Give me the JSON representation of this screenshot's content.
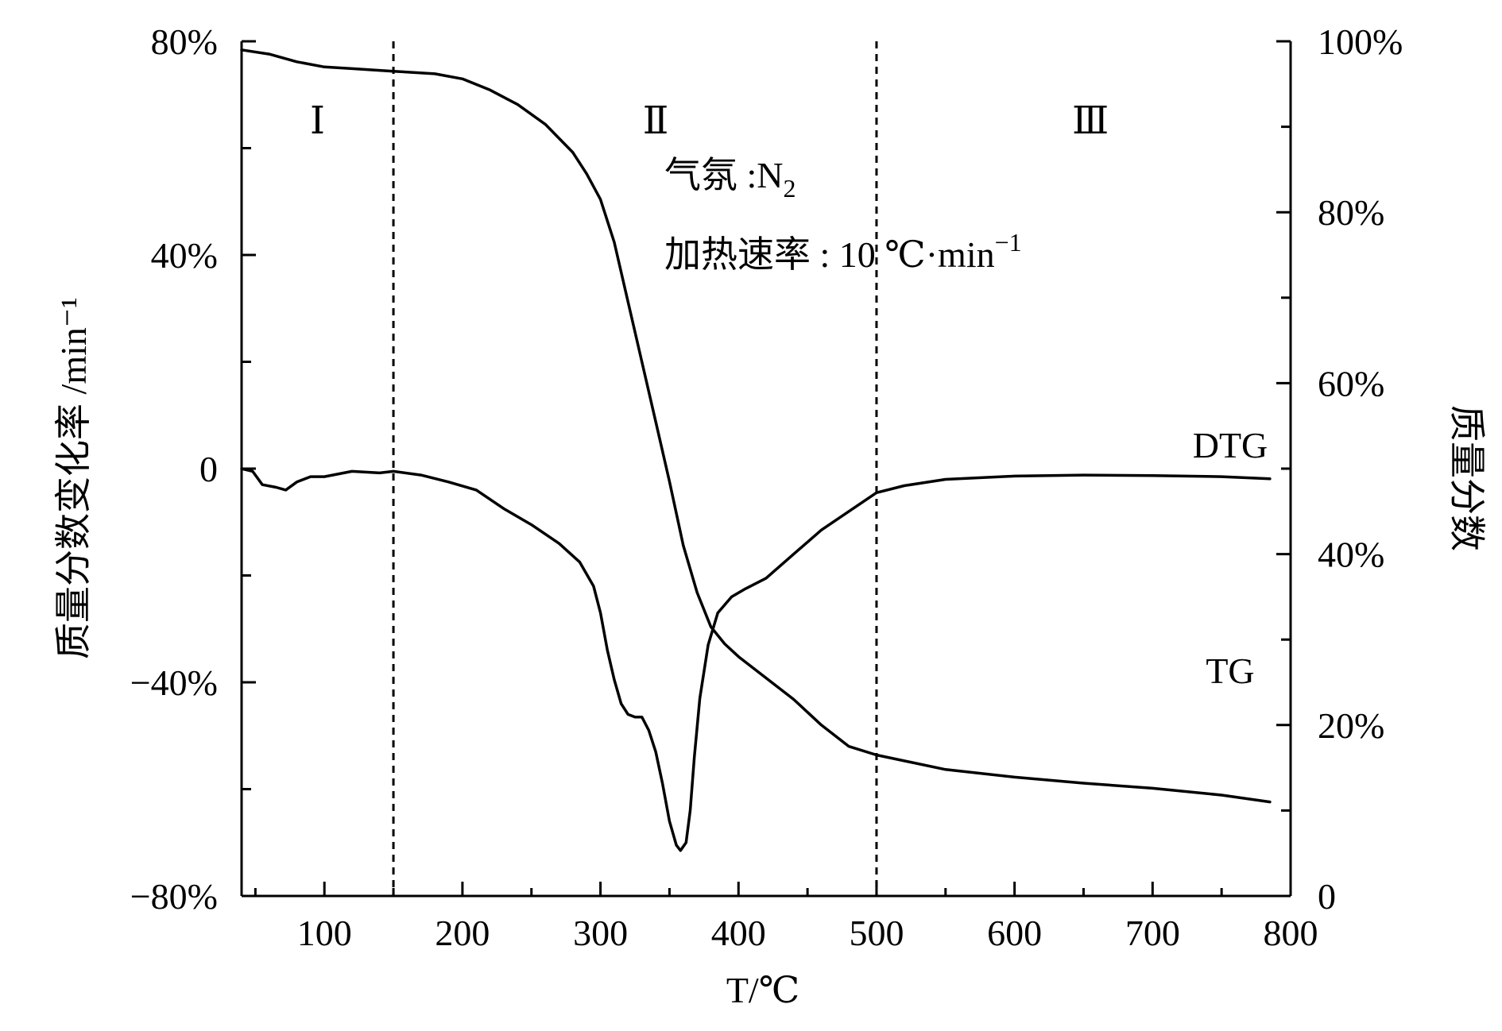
{
  "chart_data": {
    "type": "line",
    "xlabel": "T/℃",
    "ylabel_left": "质量分数变化率 /min⁻¹",
    "ylabel_right": "质量分数",
    "xlim": [
      40,
      800
    ],
    "ylim_left": [
      -80,
      80
    ],
    "ylim_right": [
      0,
      100
    ],
    "x_ticks": [
      100,
      200,
      300,
      400,
      500,
      600,
      700,
      800
    ],
    "y_ticks_left": [
      {
        "value": 80,
        "label": "80%"
      },
      {
        "value": 40,
        "label": "40%"
      },
      {
        "value": 0,
        "label": "0"
      },
      {
        "value": -40,
        "label": "−40%"
      },
      {
        "value": -80,
        "label": "−80%"
      }
    ],
    "y_ticks_right": [
      {
        "value": 100,
        "label": "100%"
      },
      {
        "value": 80,
        "label": "80%"
      },
      {
        "value": 60,
        "label": "60%"
      },
      {
        "value": 40,
        "label": "40%"
      },
      {
        "value": 20,
        "label": "20%"
      },
      {
        "value": 0,
        "label": "0"
      }
    ],
    "region_dividers": [
      150,
      500
    ],
    "regions": [
      {
        "label": "Ⅰ",
        "x": 95
      },
      {
        "label": "Ⅱ",
        "x": 340
      },
      {
        "label": "Ⅲ",
        "x": 655
      }
    ],
    "annotation": {
      "atmosphere_label": "气氛 :N",
      "atmosphere_sub": "2",
      "rate_label": "加热速率 : 10 ℃·min",
      "rate_sup": "−1"
    },
    "grid": false,
    "series": [
      {
        "name": "TG",
        "axis": "right",
        "x": [
          40,
          60,
          80,
          100,
          120,
          150,
          180,
          200,
          220,
          240,
          260,
          280,
          290,
          300,
          310,
          320,
          330,
          340,
          350,
          360,
          370,
          380,
          390,
          400,
          420,
          440,
          460,
          480,
          500,
          550,
          600,
          650,
          700,
          750,
          785
        ],
        "y": [
          99.0,
          98.5,
          97.6,
          97.0,
          96.8,
          96.5,
          96.2,
          95.6,
          94.3,
          92.6,
          90.3,
          87.0,
          84.5,
          81.5,
          76.5,
          69.5,
          62.5,
          55.5,
          48.5,
          41.0,
          35.5,
          31.5,
          29.5,
          28.0,
          25.5,
          23.0,
          20.0,
          17.5,
          16.5,
          14.8,
          13.9,
          13.2,
          12.6,
          11.8,
          11.0
        ]
      },
      {
        "name": "DTG",
        "axis": "left",
        "x": [
          40,
          48,
          55,
          65,
          72,
          80,
          90,
          100,
          120,
          140,
          150,
          170,
          190,
          210,
          230,
          250,
          270,
          285,
          295,
          300,
          305,
          310,
          315,
          320,
          325,
          330,
          335,
          340,
          345,
          350,
          355,
          358,
          362,
          365,
          368,
          372,
          378,
          385,
          395,
          405,
          420,
          440,
          460,
          480,
          500,
          520,
          550,
          600,
          650,
          700,
          750,
          785
        ],
        "y": [
          0.0,
          -0.5,
          -3.0,
          -3.5,
          -4.0,
          -2.5,
          -1.5,
          -1.5,
          -0.5,
          -0.8,
          -0.5,
          -1.2,
          -2.5,
          -4.0,
          -7.5,
          -10.5,
          -14.0,
          -17.5,
          -22.0,
          -27.0,
          -34.0,
          -39.5,
          -44.0,
          -46.0,
          -46.5,
          -46.5,
          -49.0,
          -53.0,
          -59.0,
          -66.0,
          -70.5,
          -71.5,
          -70.0,
          -64.0,
          -54.0,
          -43.0,
          -33.0,
          -27.0,
          -24.0,
          -22.5,
          -20.5,
          -16.0,
          -11.5,
          -8.0,
          -4.5,
          -3.2,
          -2.0,
          -1.4,
          -1.2,
          -1.3,
          -1.5,
          -1.9
        ]
      }
    ]
  }
}
